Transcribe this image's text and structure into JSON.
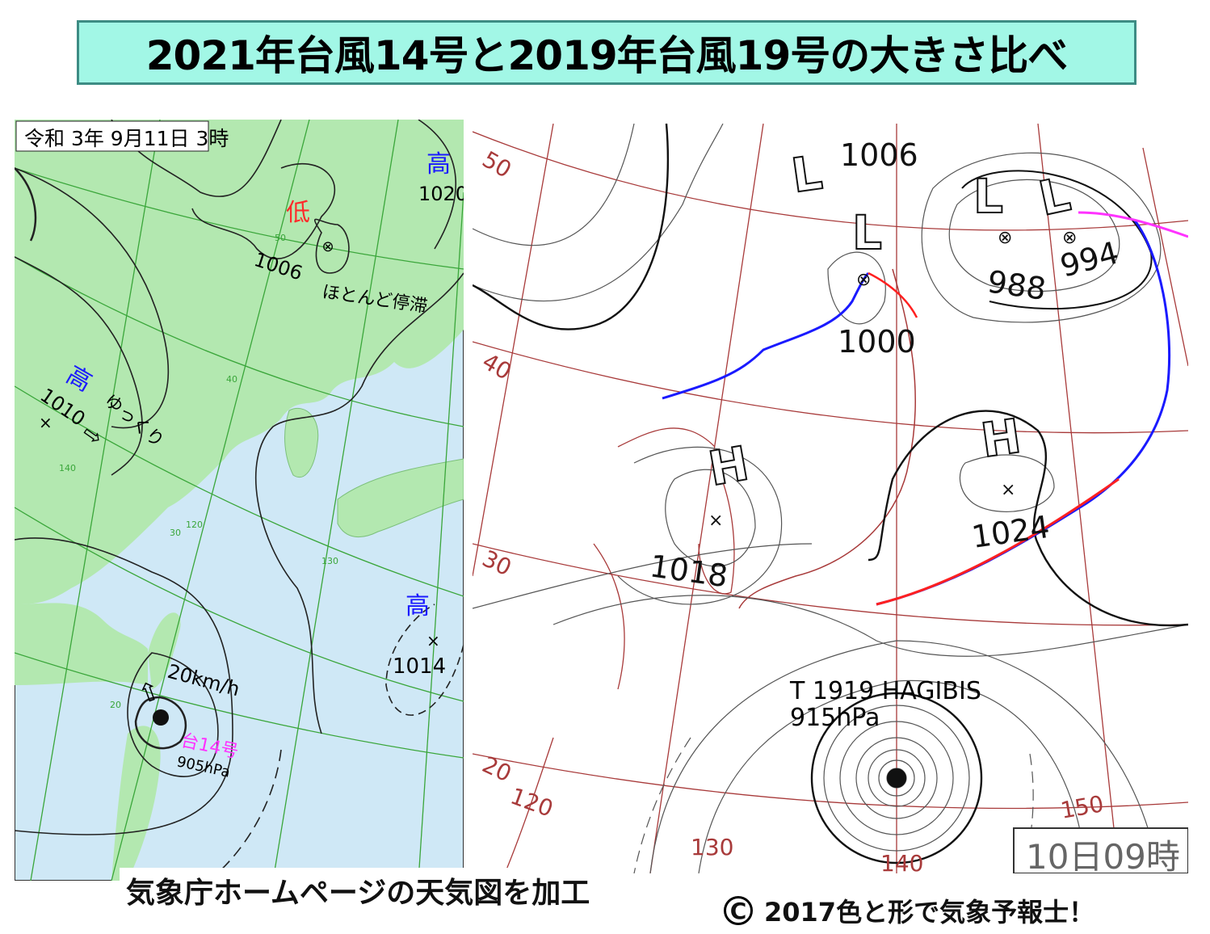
{
  "title": "2021年台風14号と2019年台風19号の大きさ比べ",
  "colors": {
    "title_bg": "#a2f7e6",
    "title_border": "#3d8c84",
    "land": "#b3e8b0",
    "sea": "#cfe8f6",
    "grid_left": "#3aa63a",
    "grid_right": "#a83a3a",
    "high": "#1a1aff",
    "low": "#ff2a2a",
    "typhoon_label": "#ff33ff",
    "cold_front": "#1a1aff",
    "warm_front": "#ff2020"
  },
  "left_map": {
    "date_label": "令和 3年 9月11日 3時",
    "low": {
      "symbol": "低",
      "pressure": "1006",
      "note": "ほとんど停滞"
    },
    "high_nw": {
      "symbol": "高",
      "pressure": "1010",
      "note": "ゆっくり"
    },
    "high_ne": {
      "symbol": "高",
      "pressure": "1020"
    },
    "high_e": {
      "symbol": "高",
      "pressure": "1014"
    },
    "typhoon": {
      "name": "台14号",
      "pressure": "905hPa",
      "speed": "20km/h"
    },
    "grid_labels": [
      "50",
      "40",
      "30",
      "20",
      "140",
      "120",
      "130"
    ]
  },
  "right_map": {
    "time_label": "10日09時",
    "lows": [
      {
        "symbol": "L",
        "pressure": "1006"
      },
      {
        "symbol": "L",
        "pressure": "1000"
      },
      {
        "symbol": "L",
        "pressure": "988"
      },
      {
        "symbol": "L",
        "pressure": "994"
      }
    ],
    "highs": [
      {
        "symbol": "H",
        "pressure": "1018"
      },
      {
        "symbol": "H",
        "pressure": "1024"
      }
    ],
    "typhoon": {
      "name": "T 1919 HAGIBIS",
      "pressure": "915hPa"
    },
    "lat_labels": [
      "50",
      "40",
      "30",
      "20"
    ],
    "lon_labels": [
      "120",
      "130",
      "140",
      "150"
    ]
  },
  "caption": "気象庁ホームページの天気図を加工",
  "credit": {
    "symbol": "C",
    "text": "2017色と形で気象予報士！"
  }
}
